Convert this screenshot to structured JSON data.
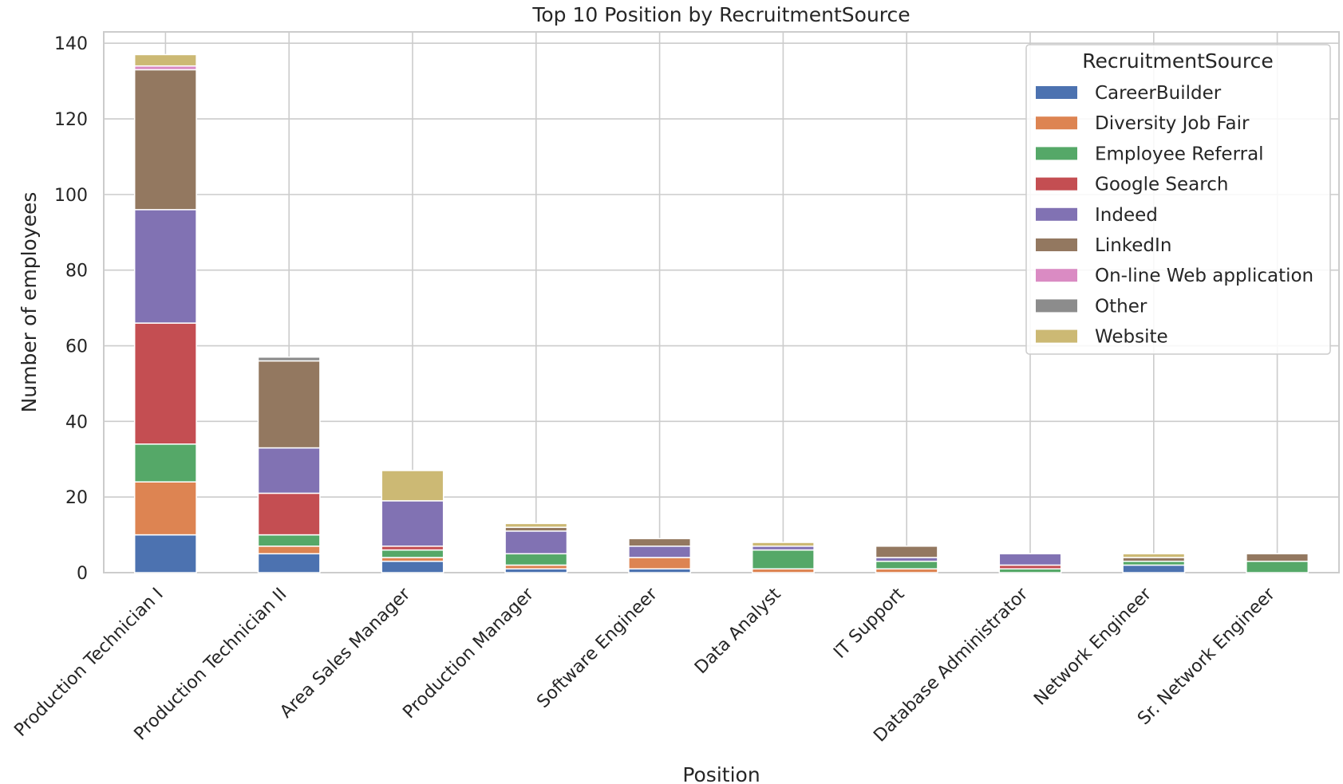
{
  "chart_data": {
    "type": "bar",
    "stacked": true,
    "title": "Top 10 Position by RecruitmentSource",
    "xlabel": "Position",
    "ylabel": "Number of employees",
    "ylim": [
      0,
      143
    ],
    "yticks": [
      0,
      20,
      40,
      60,
      80,
      100,
      120,
      140
    ],
    "grid": true,
    "legend_title": "RecruitmentSource",
    "legend_position": "top-right",
    "categories": [
      "Production Technician I",
      "Production Technician II",
      "Area Sales Manager",
      "Production Manager",
      "Software Engineer",
      "Data Analyst",
      "IT Support",
      "Database Administrator",
      "Network Engineer",
      "Sr. Network Engineer"
    ],
    "series": [
      {
        "name": "CareerBuilder",
        "color": "#4c72b0",
        "values": [
          10,
          5,
          3,
          1,
          1,
          0,
          0,
          0,
          2,
          0
        ]
      },
      {
        "name": "Diversity Job Fair",
        "color": "#dd8452",
        "values": [
          14,
          2,
          1,
          1,
          3,
          1,
          1,
          0,
          0,
          0
        ]
      },
      {
        "name": "Employee Referral",
        "color": "#55a868",
        "values": [
          10,
          3,
          2,
          3,
          0,
          5,
          2,
          1,
          1,
          3
        ]
      },
      {
        "name": "Google Search",
        "color": "#c44e52",
        "values": [
          32,
          11,
          1,
          0,
          0,
          0,
          0,
          1,
          0,
          0
        ]
      },
      {
        "name": "Indeed",
        "color": "#8172b3",
        "values": [
          30,
          12,
          12,
          6,
          3,
          1,
          1,
          3,
          0,
          0
        ]
      },
      {
        "name": "LinkedIn",
        "color": "#937860",
        "values": [
          37,
          23,
          0,
          1,
          2,
          0,
          3,
          0,
          1,
          2
        ]
      },
      {
        "name": "On-line Web application",
        "color": "#da8bc3",
        "values": [
          1,
          0,
          0,
          0,
          0,
          0,
          0,
          0,
          0,
          0
        ]
      },
      {
        "name": "Other",
        "color": "#8c8c8c",
        "values": [
          0,
          1,
          0,
          0,
          0,
          0,
          0,
          0,
          0,
          0
        ]
      },
      {
        "name": "Website",
        "color": "#ccb974",
        "values": [
          3,
          0,
          8,
          1,
          0,
          1,
          0,
          0,
          1,
          0
        ]
      }
    ]
  }
}
